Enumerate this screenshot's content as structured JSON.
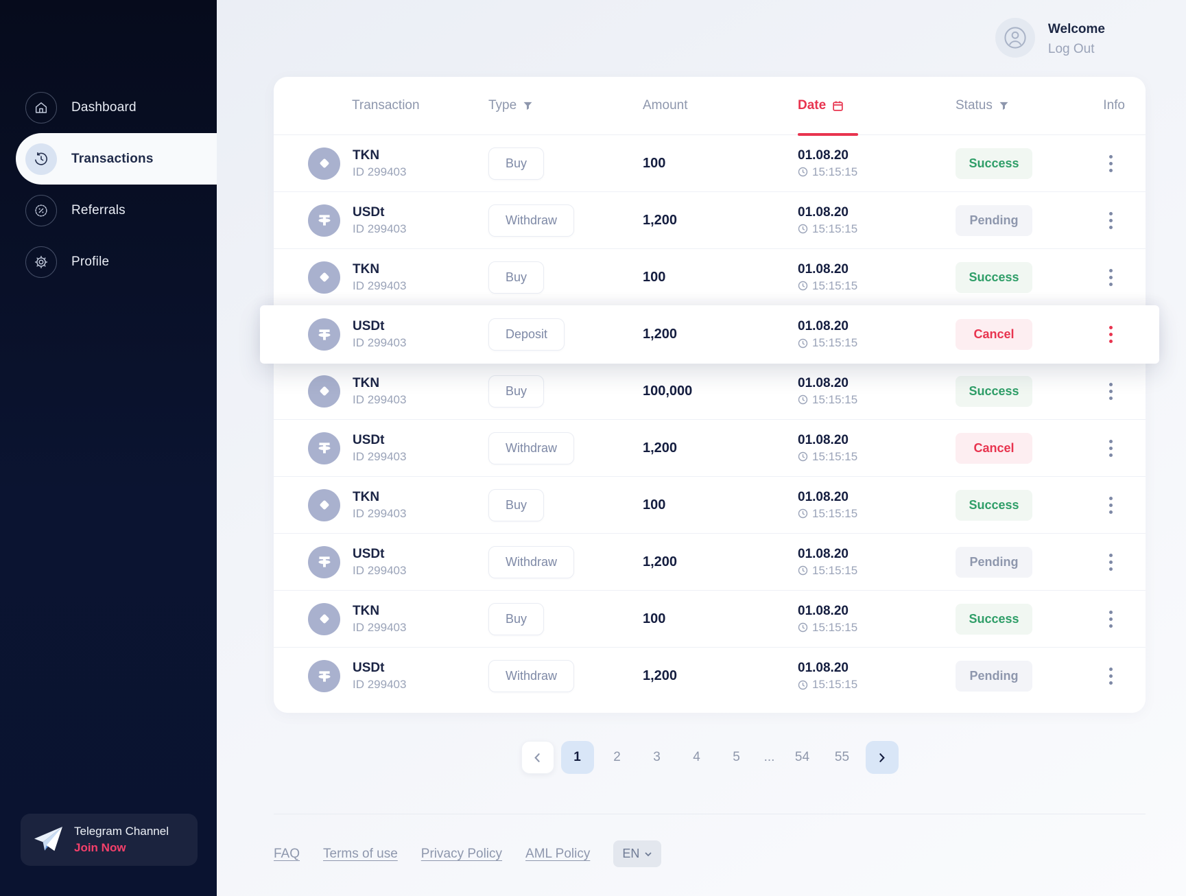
{
  "sidebar": {
    "items": [
      {
        "label": "Dashboard",
        "icon": "home-icon",
        "active": false
      },
      {
        "label": "Transactions",
        "icon": "history-icon",
        "active": true
      },
      {
        "label": "Referrals",
        "icon": "percent-badge-icon",
        "active": false
      },
      {
        "label": "Profile",
        "icon": "gear-icon",
        "active": false
      }
    ],
    "telegram": {
      "title": "Telegram Channel",
      "cta": "Join Now"
    }
  },
  "header": {
    "welcome": "Welcome",
    "logout": "Log Out"
  },
  "table": {
    "columns": {
      "transaction": "Transaction",
      "type": "Type",
      "amount": "Amount",
      "date": "Date",
      "status": "Status",
      "info": "Info"
    },
    "rows": [
      {
        "asset": "TKN",
        "id": "ID 299403",
        "type": "Buy",
        "amount": "100",
        "date": "01.08.20",
        "time": "15:15:15",
        "status": "Success",
        "highlighted": false
      },
      {
        "asset": "USDt",
        "id": "ID 299403",
        "type": "Withdraw",
        "amount": "1,200",
        "date": "01.08.20",
        "time": "15:15:15",
        "status": "Pending",
        "highlighted": false
      },
      {
        "asset": "TKN",
        "id": "ID 299403",
        "type": "Buy",
        "amount": "100",
        "date": "01.08.20",
        "time": "15:15:15",
        "status": "Success",
        "highlighted": false
      },
      {
        "asset": "USDt",
        "id": "ID 299403",
        "type": "Deposit",
        "amount": "1,200",
        "date": "01.08.20",
        "time": "15:15:15",
        "status": "Cancel",
        "highlighted": true
      },
      {
        "asset": "TKN",
        "id": "ID 299403",
        "type": "Buy",
        "amount": "100,000",
        "date": "01.08.20",
        "time": "15:15:15",
        "status": "Success",
        "highlighted": false
      },
      {
        "asset": "USDt",
        "id": "ID 299403",
        "type": "Withdraw",
        "amount": "1,200",
        "date": "01.08.20",
        "time": "15:15:15",
        "status": "Cancel",
        "highlighted": false
      },
      {
        "asset": "TKN",
        "id": "ID 299403",
        "type": "Buy",
        "amount": "100",
        "date": "01.08.20",
        "time": "15:15:15",
        "status": "Success",
        "highlighted": false
      },
      {
        "asset": "USDt",
        "id": "ID 299403",
        "type": "Withdraw",
        "amount": "1,200",
        "date": "01.08.20",
        "time": "15:15:15",
        "status": "Pending",
        "highlighted": false
      },
      {
        "asset": "TKN",
        "id": "ID 299403",
        "type": "Buy",
        "amount": "100",
        "date": "01.08.20",
        "time": "15:15:15",
        "status": "Success",
        "highlighted": false
      },
      {
        "asset": "USDt",
        "id": "ID 299403",
        "type": "Withdraw",
        "amount": "1,200",
        "date": "01.08.20",
        "time": "15:15:15",
        "status": "Pending",
        "highlighted": false
      }
    ]
  },
  "pagination": {
    "pages": [
      "1",
      "2",
      "3",
      "4",
      "5",
      "...",
      "54",
      "55"
    ],
    "active": "1"
  },
  "footer": {
    "links": [
      "FAQ",
      "Terms of use",
      "Privacy Policy",
      "AML Policy"
    ],
    "language": "EN"
  },
  "colors": {
    "accent_red": "#E8344F",
    "success_green": "#2F9E68",
    "pending_gray": "#8E97AD",
    "join_now_pink": "#F5406B",
    "active_page_bg": "#D9E6F7",
    "sidebar_bg": "#0B1431",
    "coin_circle": "#A9B1CE"
  }
}
